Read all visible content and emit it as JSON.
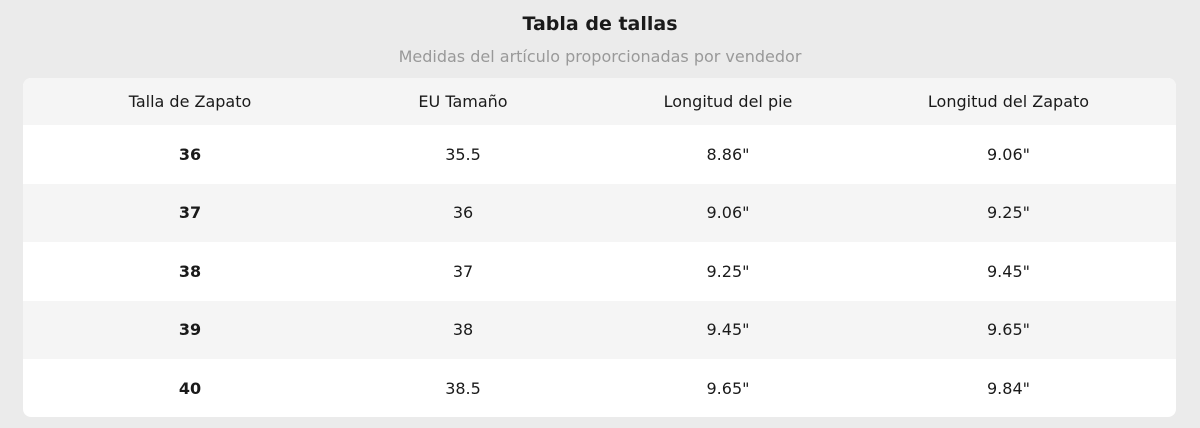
{
  "header": {
    "title": "Tabla de tallas",
    "subtitle": "Medidas del artículo proporcionadas por vendedor"
  },
  "table": {
    "columns": [
      "Talla de Zapato",
      "EU Tamaño",
      "Longitud del pie",
      "Longitud del Zapato"
    ],
    "rows": [
      [
        "36",
        "35.5",
        "8.86\"",
        "9.06\""
      ],
      [
        "37",
        "36",
        "9.06\"",
        "9.25\""
      ],
      [
        "38",
        "37",
        "9.25\"",
        "9.45\""
      ],
      [
        "39",
        "38",
        "9.45\"",
        "9.65\""
      ],
      [
        "40",
        "38.5",
        "9.65\"",
        "9.84\""
      ]
    ]
  }
}
